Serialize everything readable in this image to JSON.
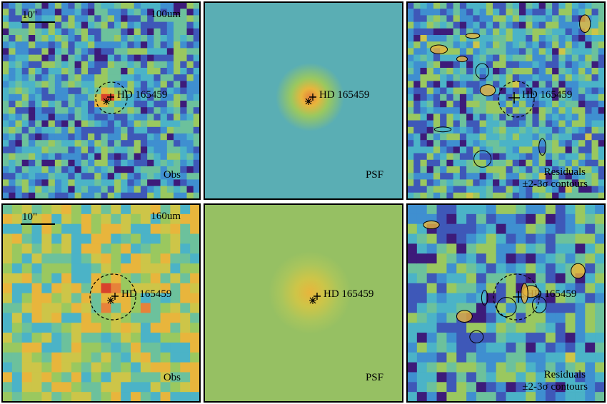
{
  "figure": {
    "rows": [
      {
        "band": "100um",
        "scalebar": "10\"",
        "target": "HD 165459",
        "panels": [
          {
            "id": "obs",
            "label": "Obs"
          },
          {
            "id": "psf",
            "label": "PSF"
          },
          {
            "id": "res",
            "label": "Residuals",
            "sublabel": "±2-3σ contours"
          }
        ]
      },
      {
        "band": "160um",
        "scalebar": "10\"",
        "target": "HD 165459",
        "panels": [
          {
            "id": "obs",
            "label": "Obs"
          },
          {
            "id": "psf",
            "label": "PSF"
          },
          {
            "id": "res",
            "label": "Residuals",
            "sublabel": "±2-3σ contours"
          }
        ]
      }
    ],
    "colors": {
      "psf_bg_100": "#5aaeb4",
      "psf_bg_160": "#96c063",
      "palette": [
        "#3d1b7a",
        "#3e58b8",
        "#3f8fd0",
        "#4bb3c7",
        "#6cc19c",
        "#9ac85f",
        "#cdc548",
        "#e8b53c",
        "#e6823a",
        "#d8412c"
      ]
    }
  }
}
